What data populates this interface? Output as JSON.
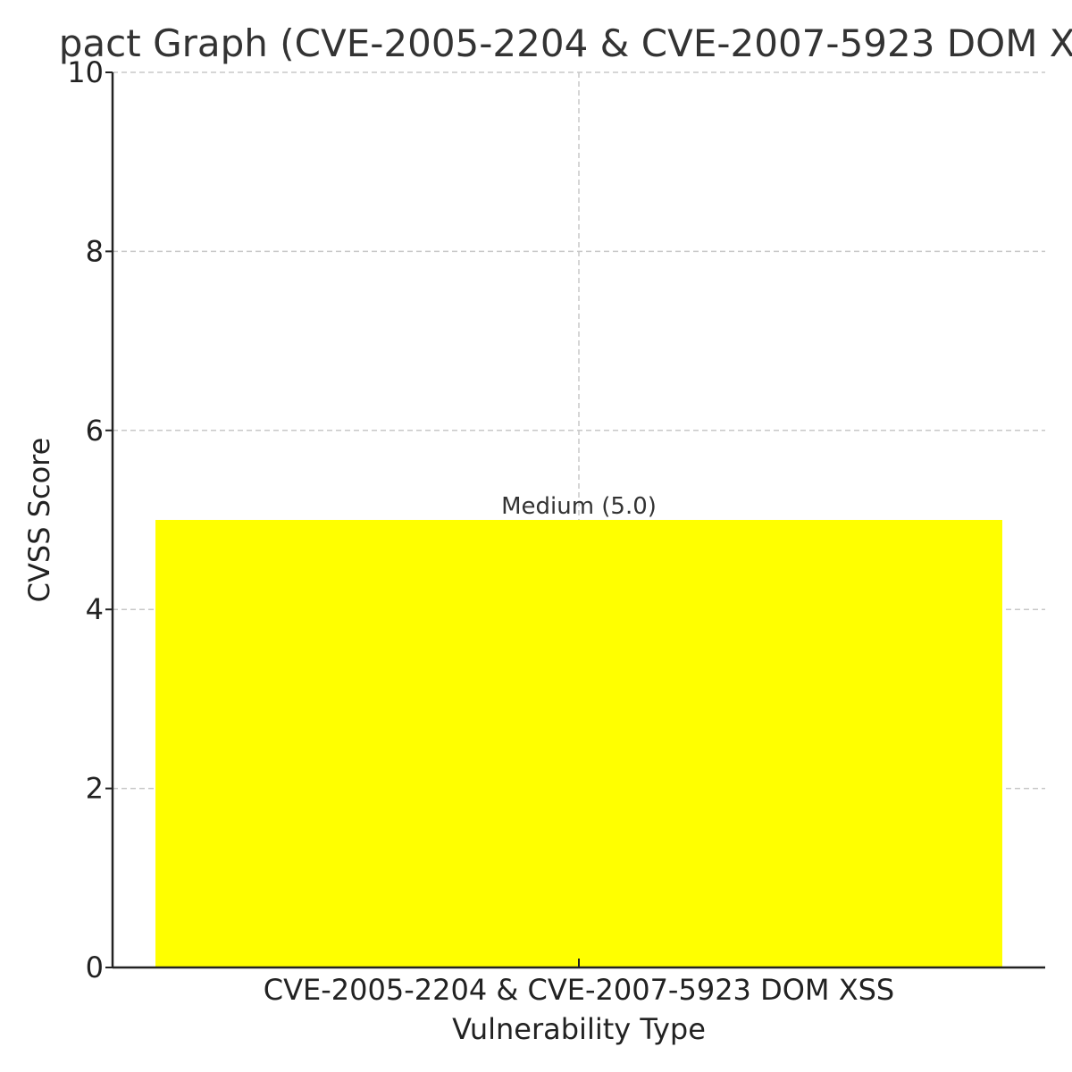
{
  "chart_data": {
    "type": "bar",
    "title": "pact Graph (CVE-2005-2204 & CVE-2007-5923 DOM XS",
    "xlabel": "Vulnerability Type",
    "ylabel": "CVSS Score",
    "categories": [
      "CVE-2005-2204 & CVE-2007-5923 DOM XSS"
    ],
    "values": [
      5.0
    ],
    "bar_labels": [
      "Medium (5.0)"
    ],
    "bar_colors": [
      "#ffff00"
    ],
    "ylim": [
      0,
      10
    ],
    "yticks": [
      0,
      2,
      4,
      6,
      8,
      10
    ],
    "grid": true,
    "legend": "none"
  }
}
